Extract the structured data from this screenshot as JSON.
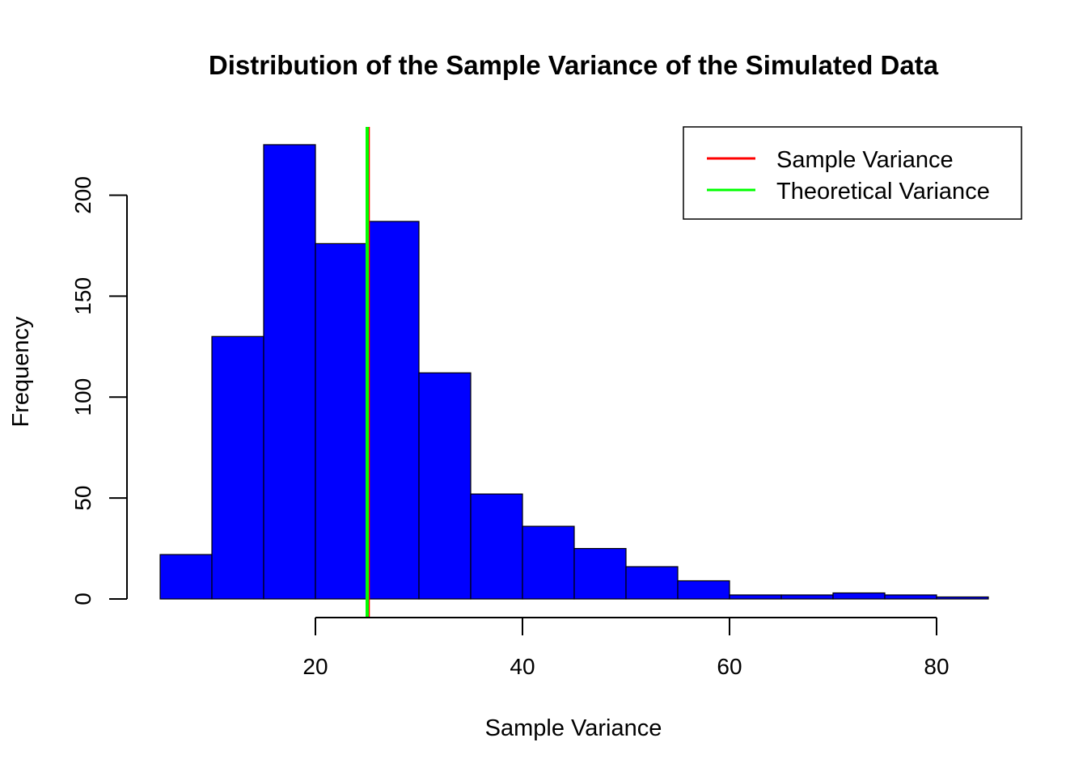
{
  "chart_data": {
    "type": "bar",
    "subtype": "histogram",
    "title": "Distribution of the Sample Variance of the Simulated Data",
    "xlabel": "Sample Variance",
    "ylabel": "Frequency",
    "bin_edges": [
      5,
      10,
      15,
      20,
      25,
      30,
      35,
      40,
      45,
      50,
      55,
      60,
      65,
      70,
      75,
      80,
      85
    ],
    "values": [
      22,
      130,
      225,
      176,
      187,
      112,
      52,
      36,
      25,
      16,
      9,
      2,
      2,
      3,
      2,
      1
    ],
    "xlim": [
      5,
      85
    ],
    "ylim": [
      0,
      225
    ],
    "x_ticks": [
      20,
      40,
      60,
      80
    ],
    "y_ticks": [
      0,
      50,
      100,
      150,
      200
    ],
    "bar_color": "#0000ff",
    "bar_edge_color": "#000000",
    "grid": false,
    "vlines": [
      {
        "name": "Sample Variance",
        "x": 25.1,
        "color": "#ff0000"
      },
      {
        "name": "Theoretical Variance",
        "x": 25,
        "color": "#00ff00"
      }
    ],
    "legend": {
      "position": "top-right",
      "entries": [
        {
          "label": "Sample Variance",
          "color": "#ff0000"
        },
        {
          "label": "Theoretical Variance",
          "color": "#00ff00"
        }
      ]
    }
  }
}
